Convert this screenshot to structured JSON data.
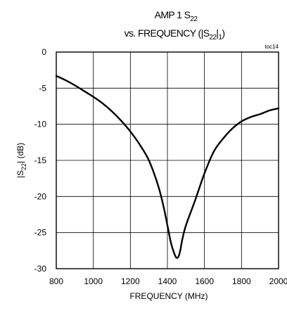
{
  "chart_data": {
    "type": "line",
    "title_line1": "AMP 1 S",
    "title_line1_sub": "22",
    "title_line2_pre": "vs. FREQUENCY (|S",
    "title_line2_sub": "22",
    "title_line2_mid": "|",
    "title_line2_sub2": "1",
    "title_line2_post": ")",
    "code": "toc14",
    "xlabel": "FREQUENCY (MHz)",
    "ylabel_pre": "|S",
    "ylabel_sub": "22",
    "ylabel_post": "| (dB)",
    "xlim": [
      800,
      2000
    ],
    "ylim": [
      -30,
      0
    ],
    "xticks": [
      800,
      1000,
      1200,
      1400,
      1600,
      1800,
      2000
    ],
    "yticks": [
      0,
      -5,
      -10,
      -15,
      -20,
      -25,
      -30
    ],
    "grid": true,
    "series": [
      {
        "x": [
          800,
          850,
          900,
          950,
          1000,
          1050,
          1100,
          1150,
          1200,
          1250,
          1300,
          1350,
          1380,
          1400,
          1420,
          1440,
          1450,
          1460,
          1470,
          1480,
          1500,
          1550,
          1600,
          1650,
          1700,
          1750,
          1800,
          1850,
          1900,
          1950,
          2000
        ],
        "y": [
          -3.3,
          -3.9,
          -4.6,
          -5.4,
          -6.2,
          -7.1,
          -8.2,
          -9.5,
          -11.0,
          -12.8,
          -15.0,
          -18.5,
          -21.5,
          -24.0,
          -26.5,
          -28.1,
          -28.5,
          -28.3,
          -27.4,
          -26.0,
          -24.0,
          -20.5,
          -16.8,
          -13.8,
          -12.0,
          -10.6,
          -9.6,
          -9.0,
          -8.6,
          -8.1,
          -7.8
        ]
      }
    ]
  }
}
